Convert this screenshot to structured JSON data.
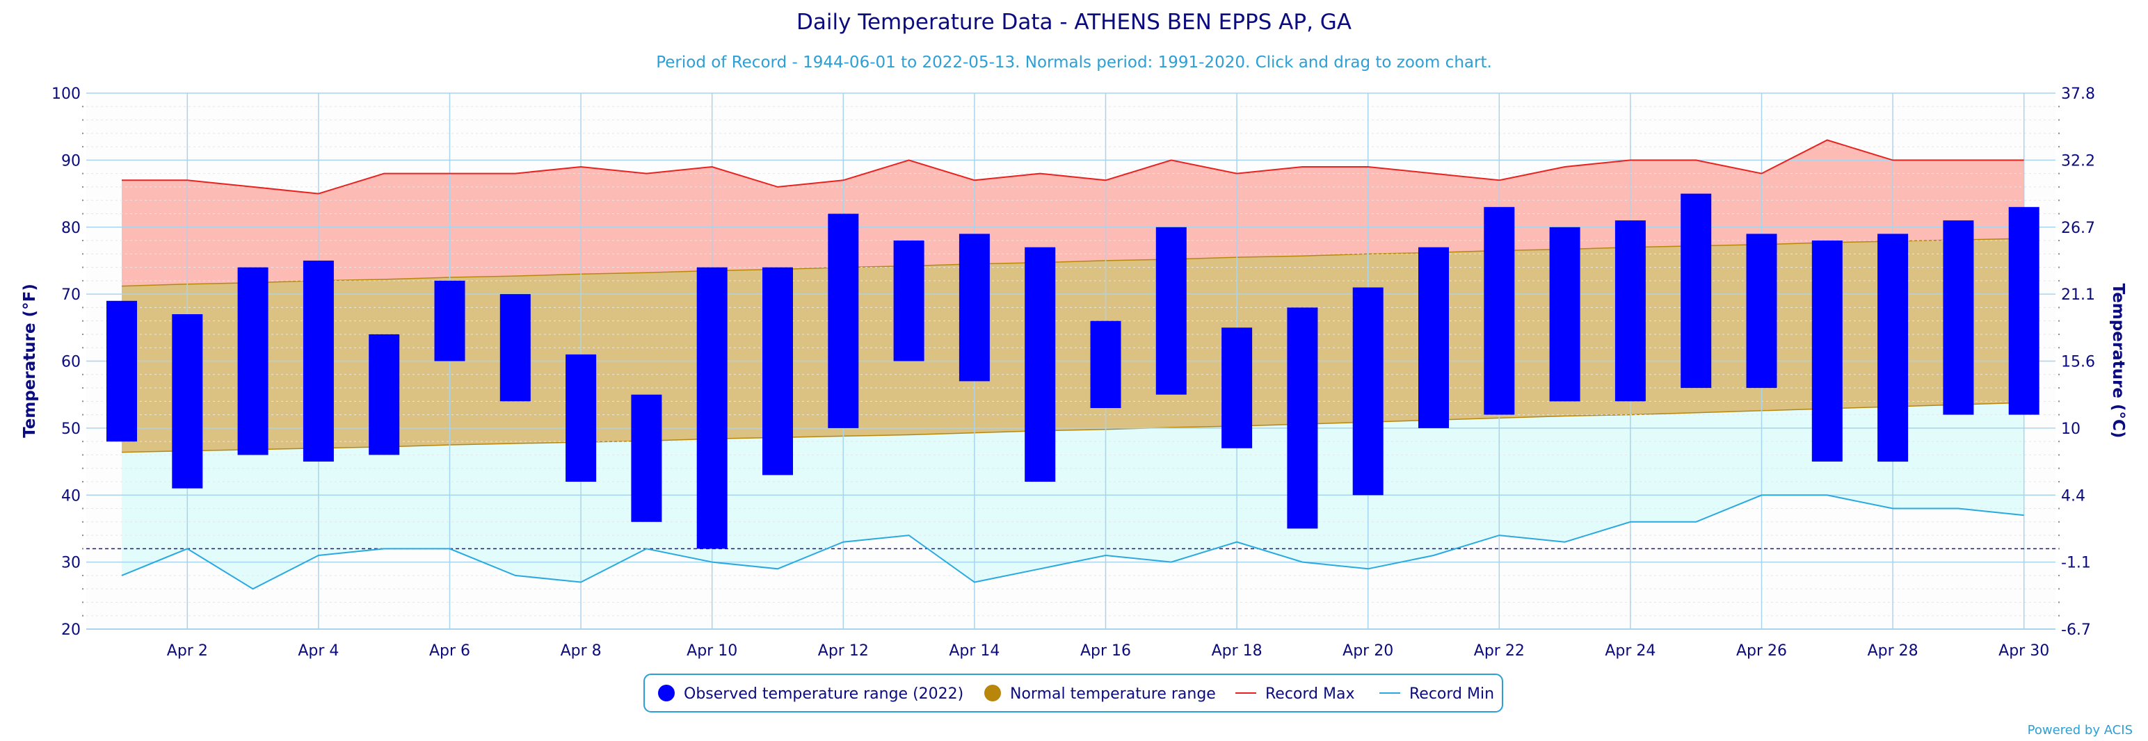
{
  "chart_data": {
    "type": "bar",
    "title": "Daily Temperature Data - ATHENS BEN EPPS AP, GA",
    "subtitle": "Period of Record - 1944-06-01 to 2022-05-13. Normals period: 1991-2020. Click and drag to zoom chart.",
    "ylabel": "Temperature (°F)",
    "ylabel_right": "Temperature (°C)",
    "ylim": [
      20,
      100
    ],
    "yticks": [
      20,
      30,
      40,
      50,
      60,
      70,
      80,
      90,
      100
    ],
    "yticks_right": [
      "-6.7",
      "-1.1",
      "4.4",
      "10",
      "15.6",
      "21.1",
      "26.7",
      "32.2",
      "37.8"
    ],
    "x": [
      "Apr 1",
      "Apr 2",
      "Apr 3",
      "Apr 4",
      "Apr 5",
      "Apr 6",
      "Apr 7",
      "Apr 8",
      "Apr 9",
      "Apr 10",
      "Apr 11",
      "Apr 12",
      "Apr 13",
      "Apr 14",
      "Apr 15",
      "Apr 16",
      "Apr 17",
      "Apr 18",
      "Apr 19",
      "Apr 20",
      "Apr 21",
      "Apr 22",
      "Apr 23",
      "Apr 24",
      "Apr 25",
      "Apr 26",
      "Apr 27",
      "Apr 28",
      "Apr 29",
      "Apr 30"
    ],
    "xtick_labels": [
      "Apr 2",
      "Apr 4",
      "Apr 6",
      "Apr 8",
      "Apr 10",
      "Apr 12",
      "Apr 14",
      "Apr 16",
      "Apr 18",
      "Apr 20",
      "Apr 22",
      "Apr 24",
      "Apr 26",
      "Apr 28",
      "Apr 30"
    ],
    "freezing_line": 32,
    "grid": true,
    "legend_position": "bottom-center",
    "series": [
      {
        "name": "Observed temperature range (2022)",
        "type": "range-bar",
        "color": "#0000ff",
        "low": [
          48,
          41,
          46,
          45,
          46,
          60,
          54,
          42,
          36,
          32,
          43,
          50,
          60,
          57,
          42,
          53,
          55,
          47,
          35,
          40,
          50,
          52,
          54,
          54,
          56,
          56,
          45,
          45,
          52,
          52
        ],
        "high": [
          69,
          67,
          74,
          75,
          64,
          72,
          70,
          61,
          55,
          74,
          74,
          82,
          78,
          79,
          77,
          66,
          80,
          65,
          68,
          71,
          77,
          83,
          80,
          81,
          85,
          79,
          78,
          79,
          81,
          83
        ]
      },
      {
        "name": "Normal temperature range",
        "type": "range-area",
        "color": "#b8860b",
        "low": [
          46.4,
          46.6,
          46.8,
          47.0,
          47.2,
          47.5,
          47.7,
          47.9,
          48.1,
          48.4,
          48.6,
          48.8,
          49.0,
          49.3,
          49.6,
          49.8,
          50.1,
          50.3,
          50.6,
          50.9,
          51.2,
          51.5,
          51.8,
          52.0,
          52.3,
          52.6,
          52.9,
          53.2,
          53.5,
          53.8
        ],
        "high": [
          71.2,
          71.5,
          71.7,
          72.0,
          72.2,
          72.5,
          72.7,
          73.0,
          73.2,
          73.5,
          73.7,
          74.0,
          74.2,
          74.5,
          74.7,
          75.0,
          75.2,
          75.5,
          75.7,
          76.0,
          76.2,
          76.5,
          76.7,
          77.0,
          77.2,
          77.4,
          77.7,
          77.9,
          78.1,
          78.3
        ]
      },
      {
        "name": "Record Max",
        "type": "line",
        "color": "#e8231f",
        "values": [
          87,
          87,
          86,
          85,
          88,
          88,
          88,
          89,
          88,
          89,
          86,
          87,
          90,
          87,
          88,
          87,
          90,
          88,
          89,
          89,
          88,
          87,
          89,
          90,
          90,
          88,
          93,
          90,
          90,
          90
        ]
      },
      {
        "name": "Record Min",
        "type": "line",
        "color": "#29a9e0",
        "values": [
          28,
          32,
          26,
          31,
          32,
          32,
          28,
          27,
          32,
          30,
          29,
          33,
          34,
          27,
          29,
          31,
          30,
          33,
          30,
          29,
          31,
          34,
          33,
          36,
          36,
          40,
          40,
          38,
          38,
          37
        ]
      }
    ]
  },
  "colors": {
    "record_band": "#fdbbb6",
    "normal_band": "#dcc282",
    "low_band": "#e1fcfb",
    "grid": "#a9d4ee",
    "axis_text": "#0b0b80",
    "freeze_line": "#1a1a8c"
  },
  "credit": "Powered by ACIS"
}
